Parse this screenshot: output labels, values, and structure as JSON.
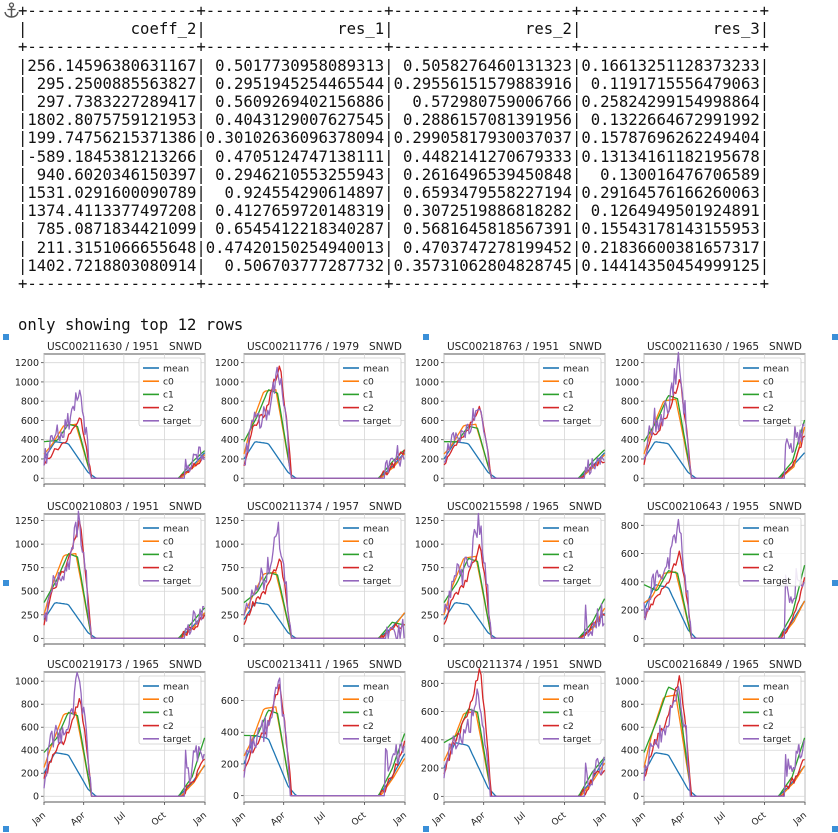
{
  "table": {
    "headers": [
      "coeff_2",
      "res_1",
      "res_2",
      "res_3"
    ],
    "rows": [
      [
        "256.14596380631167",
        "0.5017730958089313",
        "0.5058276460131323",
        "0.16613251128373233"
      ],
      [
        "295.2500885563827",
        "0.2951945254465544",
        "0.29556151579883916",
        "0.1191715556479063"
      ],
      [
        "297.7383227289417",
        "0.5609269402156886",
        "0.572980759006766",
        "0.25824299154998864"
      ],
      [
        "1802.8075759121953",
        "0.4043129007627545",
        "0.2886157081391956",
        "0.1322664672991992"
      ],
      [
        "199.74756215371386",
        "0.30102636096378094",
        "0.29905817930037037",
        "0.15787696262249404"
      ],
      [
        "-589.1845381213266",
        "0.4705124747138111",
        "0.4482141270679333",
        "0.13134161182195678"
      ],
      [
        "940.6020346150397",
        "0.2946210553255943",
        "0.2616496539450848",
        "0.130016476706589"
      ],
      [
        "1531.0291600090789",
        "0.924554290614897",
        "0.6593479558227194",
        "0.29164576166260063"
      ],
      [
        "1374.4113377497208",
        "0.4127659720148319",
        "0.3072519886818282",
        "0.1264949501924891"
      ],
      [
        "785.0871834421099",
        "0.6545412218340287",
        "0.5681645818567391",
        "0.15543178143155953"
      ],
      [
        "211.3151066655648",
        "0.47420150254940013",
        "0.4703747278199452",
        "0.21836600381657317"
      ],
      [
        "1402.7218803080914",
        "0.506703777287732",
        "0.35731062804828745",
        "0.14414350454999125"
      ]
    ],
    "footer": "only showing top 12 rows"
  },
  "icons": {
    "anchor": "anchor-icon"
  },
  "colors": {
    "mean": "#1f77b4",
    "c0": "#ff7f0e",
    "c1": "#2ca02c",
    "c2": "#d62728",
    "target": "#9467bd",
    "handle": "#3a8fd8"
  },
  "chart_data": [
    {
      "type": "line",
      "title": "USC00211630 / 1951",
      "measure": "SNWD",
      "yticks": [
        0,
        200,
        400,
        600,
        800,
        1000,
        1200
      ],
      "ylim": [
        -60,
        1290
      ],
      "xticks": [
        "Jan",
        "Apr",
        "Jul",
        "Oct",
        "Jan"
      ],
      "legend": [
        "mean",
        "c0",
        "c1",
        "c2",
        "target"
      ],
      "legend_position": "upper-right",
      "grid": true,
      "pk": [
        380,
        560,
        560,
        640,
        900
      ],
      "tail": [
        270,
        250,
        290,
        220,
        250
      ]
    },
    {
      "type": "line",
      "title": "USC00211776 / 1979",
      "measure": "SNWD",
      "yticks": [
        0,
        200,
        400,
        600,
        800,
        1000,
        1200
      ],
      "ylim": [
        -60,
        1290
      ],
      "xticks": [
        "Jan",
        "Apr",
        "Jul",
        "Oct",
        "Jan"
      ],
      "legend": [
        "mean",
        "c0",
        "c1",
        "c2",
        "target"
      ],
      "legend_position": "upper-right",
      "grid": true,
      "pk": [
        380,
        920,
        920,
        1190,
        1150
      ],
      "tail": [
        270,
        260,
        300,
        280,
        230
      ]
    },
    {
      "type": "line",
      "title": "USC00218763 / 1951",
      "measure": "SNWD",
      "yticks": [
        0,
        200,
        400,
        600,
        800,
        1000,
        1200
      ],
      "ylim": [
        -60,
        1290
      ],
      "xticks": [
        "Jan",
        "Apr",
        "Jul",
        "Oct",
        "Jan"
      ],
      "legend": [
        "mean",
        "c0",
        "c1",
        "c2",
        "target"
      ],
      "legend_position": "upper-right",
      "grid": true,
      "pk": [
        380,
        560,
        540,
        760,
        800
      ],
      "tail": [
        270,
        250,
        300,
        200,
        180
      ]
    },
    {
      "type": "line",
      "title": "USC00211630 / 1965",
      "measure": "SNWD",
      "yticks": [
        0,
        200,
        400,
        600,
        800,
        1000,
        1200
      ],
      "ylim": [
        -60,
        1290
      ],
      "xticks": [
        "Jan",
        "Apr",
        "Jul",
        "Oct",
        "Jan"
      ],
      "legend": [
        "mean",
        "c0",
        "c1",
        "c2",
        "target"
      ],
      "legend_position": "upper-right",
      "grid": true,
      "pk": [
        380,
        820,
        860,
        1040,
        1190
      ],
      "tail": [
        270,
        550,
        620,
        470,
        500
      ]
    },
    {
      "type": "line",
      "title": "USC00210803 / 1951",
      "measure": "SNWD",
      "yticks": [
        0,
        250,
        500,
        750,
        1000,
        1250
      ],
      "ylim": [
        -60,
        1320
      ],
      "xticks": [
        "Jan",
        "Apr",
        "Jul",
        "Oct",
        "Jan"
      ],
      "legend": [
        "mean",
        "c0",
        "c1",
        "c2",
        "target"
      ],
      "legend_position": "upper-right",
      "grid": true,
      "pk": [
        380,
        900,
        900,
        1270,
        1250
      ],
      "tail": [
        270,
        280,
        330,
        250,
        240
      ]
    },
    {
      "type": "line",
      "title": "USC00211374 / 1957",
      "measure": "SNWD",
      "yticks": [
        0,
        250,
        500,
        750,
        1000,
        1250
      ],
      "ylim": [
        -60,
        1320
      ],
      "xticks": [
        "Jan",
        "Apr",
        "Jul",
        "Oct",
        "Jan"
      ],
      "legend": [
        "mean",
        "c0",
        "c1",
        "c2",
        "target"
      ],
      "legend_position": "upper-right",
      "grid": true,
      "pk": [
        380,
        700,
        700,
        850,
        1160
      ],
      "tail": [
        270,
        280,
        140,
        120,
        80
      ]
    },
    {
      "type": "line",
      "title": "USC00215598 / 1965",
      "measure": "SNWD",
      "yticks": [
        0,
        250,
        500,
        750,
        1000,
        1250
      ],
      "ylim": [
        -60,
        1320
      ],
      "xticks": [
        "Jan",
        "Apr",
        "Jul",
        "Oct",
        "Jan"
      ],
      "legend": [
        "mean",
        "c0",
        "c1",
        "c2",
        "target"
      ],
      "legend_position": "upper-right",
      "grid": true,
      "pk": [
        380,
        870,
        850,
        1000,
        1270
      ],
      "tail": [
        270,
        330,
        430,
        280,
        250
      ]
    },
    {
      "type": "line",
      "title": "USC00210643 / 1955",
      "measure": "SNWD",
      "yticks": [
        0,
        200,
        400,
        600,
        800
      ],
      "ylim": [
        -40,
        880
      ],
      "xticks": [
        "Jan",
        "Apr",
        "Jul",
        "Oct",
        "Jan"
      ],
      "legend": [
        "mean",
        "c0",
        "c1",
        "c2",
        "target"
      ],
      "legend_position": "upper-right",
      "grid": true,
      "pk": [
        380,
        470,
        480,
        620,
        820
      ],
      "tail": [
        270,
        270,
        530,
        450,
        430
      ]
    },
    {
      "type": "line",
      "title": "USC00219173 / 1965",
      "measure": "SNWD",
      "yticks": [
        0,
        200,
        400,
        600,
        800,
        1000
      ],
      "ylim": [
        -50,
        1080
      ],
      "xticks": [
        "Jan",
        "Apr",
        "Jul",
        "Oct",
        "Jan"
      ],
      "legend": [
        "mean",
        "c0",
        "c1",
        "c2",
        "target"
      ],
      "legend_position": "upper-right",
      "grid": true,
      "pk": [
        380,
        730,
        730,
        850,
        1030
      ],
      "tail": [
        270,
        280,
        520,
        320,
        370
      ]
    },
    {
      "type": "line",
      "title": "USC00213411 / 1965",
      "measure": "SNWD",
      "yticks": [
        0,
        200,
        400,
        600
      ],
      "ylim": [
        -40,
        780
      ],
      "xticks": [
        "Jan",
        "Apr",
        "Jul",
        "Oct",
        "Jan"
      ],
      "legend": [
        "mean",
        "c0",
        "c1",
        "c2",
        "target"
      ],
      "legend_position": "upper-right",
      "grid": true,
      "pk": [
        380,
        560,
        540,
        700,
        730
      ],
      "tail": [
        270,
        240,
        400,
        330,
        290
      ]
    },
    {
      "type": "line",
      "title": "USC00211374 / 1951",
      "measure": "SNWD",
      "yticks": [
        0,
        200,
        400,
        600,
        800
      ],
      "ylim": [
        -40,
        880
      ],
      "xticks": [
        "Jan",
        "Apr",
        "Jul",
        "Oct",
        "Jan"
      ],
      "legend": [
        "mean",
        "c0",
        "c1",
        "c2",
        "target"
      ],
      "legend_position": "upper-right",
      "grid": true,
      "pk": [
        380,
        600,
        620,
        900,
        740
      ],
      "tail": [
        270,
        240,
        280,
        210,
        230
      ]
    },
    {
      "type": "line",
      "title": "USC00216849 / 1965",
      "measure": "SNWD",
      "yticks": [
        0,
        200,
        400,
        600,
        800,
        1000
      ],
      "ylim": [
        -50,
        1080
      ],
      "xticks": [
        "Jan",
        "Apr",
        "Jul",
        "Oct",
        "Jan"
      ],
      "legend": [
        "mean",
        "c0",
        "c1",
        "c2",
        "target"
      ],
      "legend_position": "upper-right",
      "grid": true,
      "pk": [
        380,
        880,
        950,
        1040,
        1000
      ],
      "tail": [
        270,
        270,
        520,
        330,
        380
      ]
    }
  ]
}
